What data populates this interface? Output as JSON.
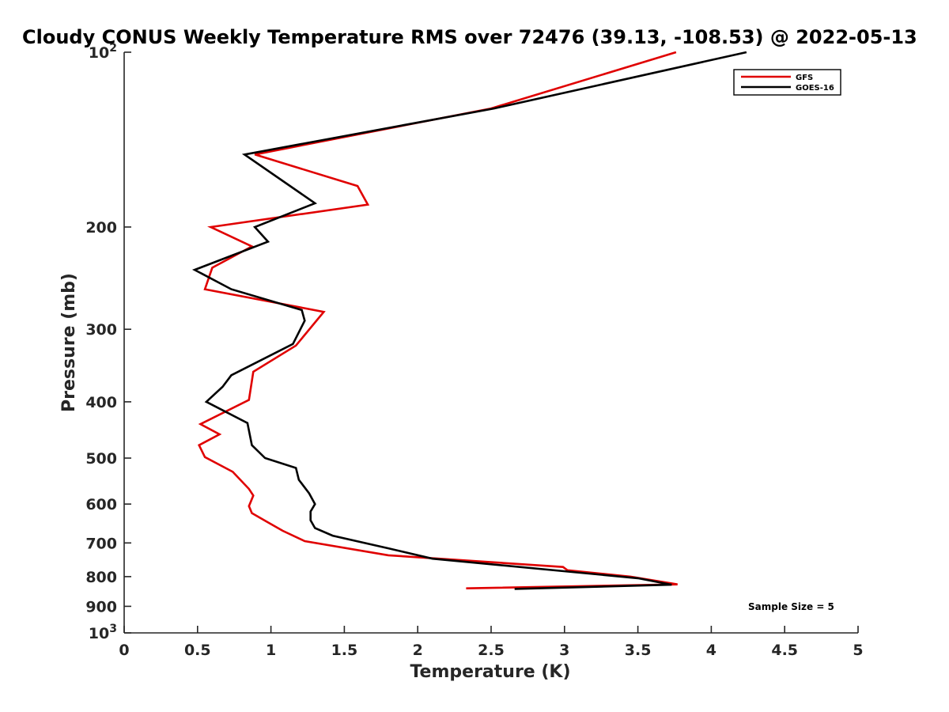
{
  "chart_data": {
    "type": "line",
    "title": "Cloudy CONUS Weekly Temperature RMS over 72476 (39.13, -108.53) @ 2022-05-13",
    "xlabel": "Temperature (K)",
    "ylabel": "Pressure (mb)",
    "xlim": [
      0,
      5
    ],
    "ylim": [
      100,
      1000
    ],
    "yscale": "log",
    "y_reversed": true,
    "x_ticks": [
      0,
      0.5,
      1,
      1.5,
      2,
      2.5,
      3,
      3.5,
      4,
      4.5,
      5
    ],
    "x_tick_labels": [
      "0",
      "0.5",
      "1",
      "1.5",
      "2",
      "2.5",
      "3",
      "3.5",
      "4",
      "4.5",
      "5"
    ],
    "y_ticks": [
      100,
      200,
      300,
      400,
      500,
      600,
      700,
      800,
      900,
      1000
    ],
    "y_tick_labels": [
      {
        "text": "10",
        "sup": "2"
      },
      {
        "text": "200",
        "sup": ""
      },
      {
        "text": "300",
        "sup": ""
      },
      {
        "text": "400",
        "sup": ""
      },
      {
        "text": "500",
        "sup": ""
      },
      {
        "text": "600",
        "sup": ""
      },
      {
        "text": "700",
        "sup": ""
      },
      {
        "text": "800",
        "sup": ""
      },
      {
        "text": "900",
        "sup": ""
      },
      {
        "text": "10",
        "sup": "3"
      }
    ],
    "grid": false,
    "legend_position": "top-right",
    "annotation": "Sample Size = 5",
    "series": [
      {
        "name": "GFS",
        "color": "#e00000",
        "points": [
          [
            3.76,
            100
          ],
          [
            2.5,
            125
          ],
          [
            0.89,
            150
          ],
          [
            1.59,
            170
          ],
          [
            1.66,
            183
          ],
          [
            0.59,
            200
          ],
          [
            0.87,
            216
          ],
          [
            0.6,
            235
          ],
          [
            0.55,
            256
          ],
          [
            1.36,
            280
          ],
          [
            1.17,
            320
          ],
          [
            0.88,
            355
          ],
          [
            0.85,
            397
          ],
          [
            0.52,
            437
          ],
          [
            0.65,
            455
          ],
          [
            0.51,
            475
          ],
          [
            0.55,
            498
          ],
          [
            0.74,
            528
          ],
          [
            0.85,
            565
          ],
          [
            0.88,
            580
          ],
          [
            0.85,
            605
          ],
          [
            0.87,
            622
          ],
          [
            0.97,
            643
          ],
          [
            1.08,
            667
          ],
          [
            1.23,
            695
          ],
          [
            1.8,
            735
          ],
          [
            2.99,
            770
          ],
          [
            3.02,
            780
          ],
          [
            3.45,
            800
          ],
          [
            3.77,
            825
          ],
          [
            2.33,
            838
          ]
        ]
      },
      {
        "name": "GOES-16",
        "color": "#000000",
        "points": [
          [
            4.24,
            100
          ],
          [
            2.52,
            125
          ],
          [
            0.82,
            150
          ],
          [
            1.3,
            182
          ],
          [
            0.89,
            200
          ],
          [
            0.98,
            212
          ],
          [
            0.48,
            237
          ],
          [
            0.73,
            256
          ],
          [
            1.21,
            278
          ],
          [
            1.23,
            290
          ],
          [
            1.15,
            318
          ],
          [
            0.73,
            360
          ],
          [
            0.67,
            377
          ],
          [
            0.56,
            400
          ],
          [
            0.84,
            435
          ],
          [
            0.87,
            475
          ],
          [
            0.96,
            500
          ],
          [
            1.17,
            520
          ],
          [
            1.19,
            545
          ],
          [
            1.26,
            575
          ],
          [
            1.3,
            600
          ],
          [
            1.27,
            618
          ],
          [
            1.27,
            640
          ],
          [
            1.3,
            660
          ],
          [
            1.42,
            680
          ],
          [
            1.8,
            715
          ],
          [
            2.1,
            745
          ],
          [
            3.5,
            805
          ],
          [
            3.73,
            826
          ],
          [
            2.66,
            840
          ]
        ]
      }
    ]
  }
}
